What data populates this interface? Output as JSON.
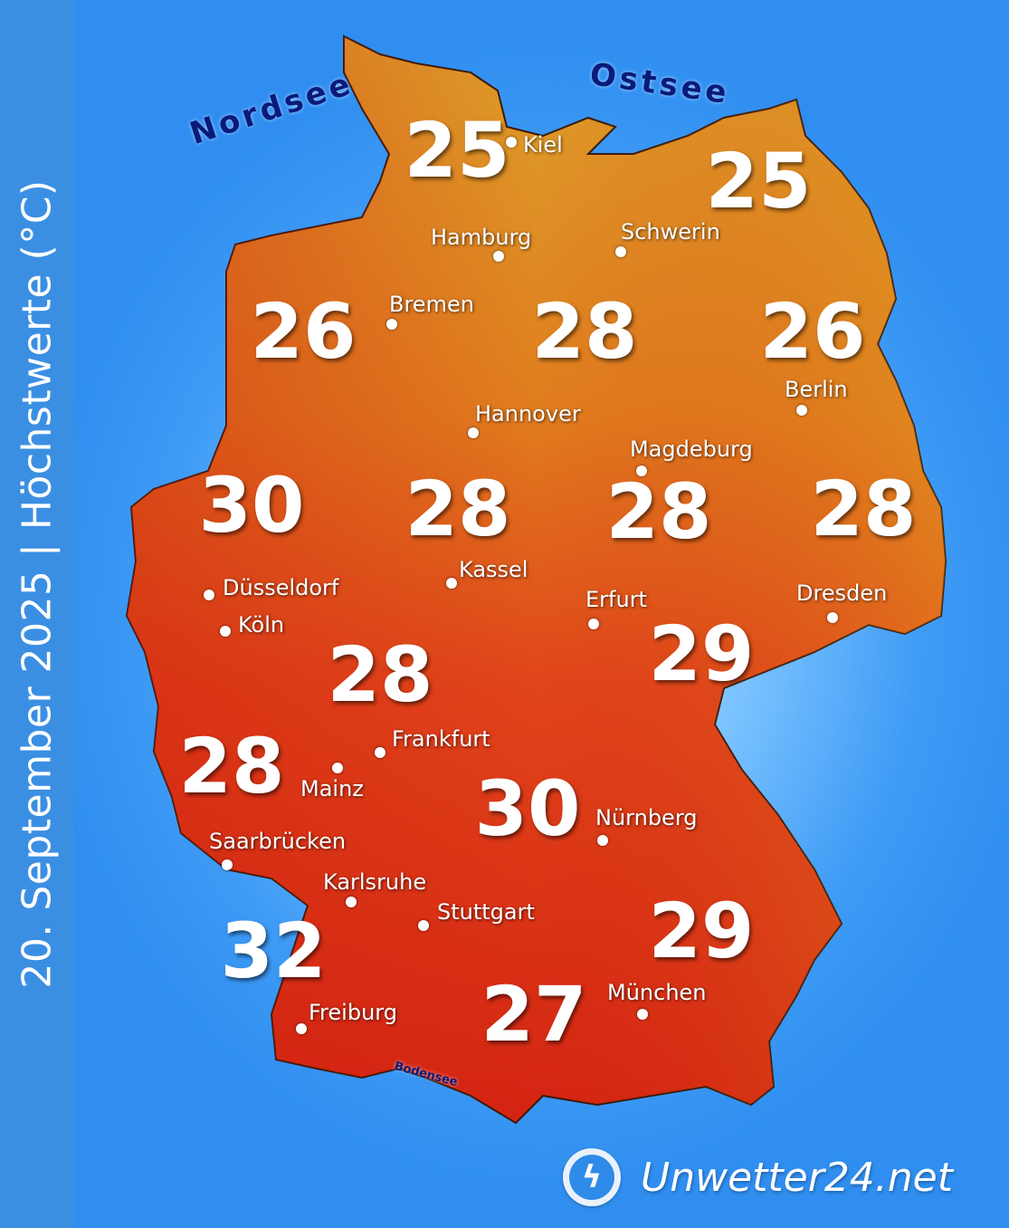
{
  "title": "20. September 2025 | Höchstwerte (°C)",
  "seas": {
    "nordsee": "Nordsee",
    "ostsee": "Ostsee",
    "bodensee": "Bodensee"
  },
  "colors": {
    "north": "#d9921e",
    "south": "#d82a14",
    "background": "#3f9bf5",
    "sidebar": "#3b8fe3"
  },
  "temperatures": [
    "25",
    "25",
    "26",
    "28",
    "26",
    "30",
    "28",
    "28",
    "28",
    "29",
    "28",
    "28",
    "30",
    "32",
    "29",
    "27"
  ],
  "cities": [
    "Kiel",
    "Hamburg",
    "Schwerin",
    "Bremen",
    "Berlin",
    "Hannover",
    "Magdeburg",
    "Kassel",
    "Düsseldorf",
    "Köln",
    "Erfurt",
    "Dresden",
    "Frankfurt",
    "Mainz",
    "Nürnberg",
    "Saarbrücken",
    "Karlsruhe",
    "Stuttgart",
    "Freiburg",
    "München"
  ],
  "logo": {
    "text": "Unwetter24.net",
    "icon": "lightning-icon"
  }
}
